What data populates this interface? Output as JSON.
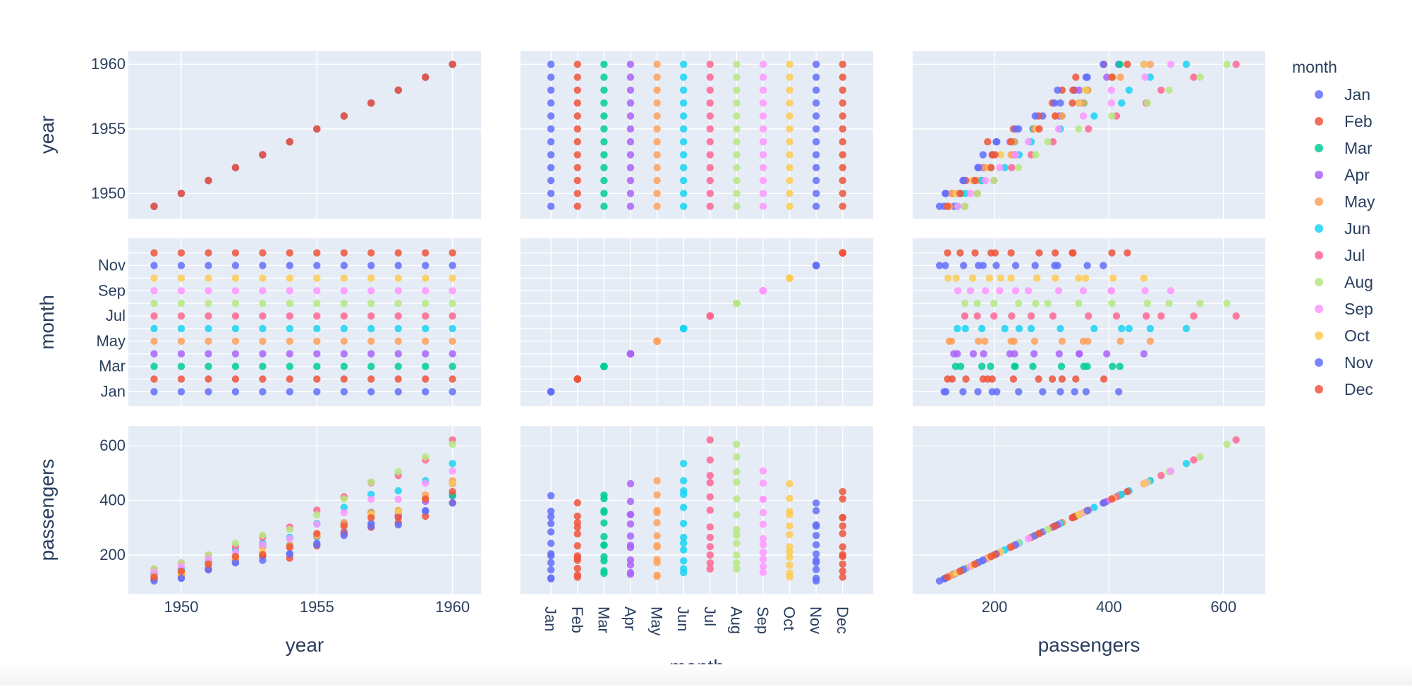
{
  "chart_data": {
    "type": "scatter-matrix",
    "dimensions": [
      "year",
      "month",
      "passengers"
    ],
    "dimension_labels": {
      "year": "year",
      "month": "month",
      "passengers": "passengers"
    },
    "axes": {
      "year": {
        "range": [
          1948.05,
          1961.05
        ],
        "ticks": [
          1950,
          1955,
          1960
        ],
        "tick_labels": [
          "1950",
          "1955",
          "1960"
        ],
        "categorical": false
      },
      "month": {
        "range": [
          -1.15,
          12.15
        ],
        "categories": [
          "Jan",
          "Feb",
          "Mar",
          "Apr",
          "May",
          "Jun",
          "Jul",
          "Aug",
          "Sep",
          "Oct",
          "Nov",
          "Dec"
        ],
        "y_tick_labels": [
          "Jan",
          "Mar",
          "May",
          "Jul",
          "Sep",
          "Nov"
        ],
        "categorical": true
      },
      "passengers": {
        "range": [
          57,
          673
        ],
        "ticks": [
          200,
          400,
          600
        ],
        "tick_labels": [
          "200",
          "400",
          "600"
        ],
        "categorical": false
      }
    },
    "legend": {
      "title": "month",
      "position": "right"
    },
    "series": [
      {
        "name": "Jan",
        "color": "#636efa",
        "year": [
          1949,
          1950,
          1951,
          1952,
          1953,
          1954,
          1955,
          1956,
          1957,
          1958,
          1959,
          1960
        ],
        "passengers": [
          112,
          115,
          145,
          171,
          196,
          204,
          242,
          284,
          315,
          340,
          360,
          417
        ]
      },
      {
        "name": "Feb",
        "color": "#EF553B",
        "year": [
          1949,
          1950,
          1951,
          1952,
          1953,
          1954,
          1955,
          1956,
          1957,
          1958,
          1959,
          1960
        ],
        "passengers": [
          118,
          126,
          150,
          180,
          196,
          188,
          233,
          277,
          301,
          318,
          342,
          391
        ]
      },
      {
        "name": "Mar",
        "color": "#00cc96",
        "year": [
          1949,
          1950,
          1951,
          1952,
          1953,
          1954,
          1955,
          1956,
          1957,
          1958,
          1959,
          1960
        ],
        "passengers": [
          132,
          141,
          178,
          193,
          236,
          235,
          267,
          317,
          356,
          362,
          406,
          419
        ]
      },
      {
        "name": "Apr",
        "color": "#ab63fa",
        "year": [
          1949,
          1950,
          1951,
          1952,
          1953,
          1954,
          1955,
          1956,
          1957,
          1958,
          1959,
          1960
        ],
        "passengers": [
          129,
          135,
          163,
          181,
          235,
          227,
          269,
          313,
          348,
          348,
          396,
          461
        ]
      },
      {
        "name": "May",
        "color": "#FFA15A",
        "year": [
          1949,
          1950,
          1951,
          1952,
          1953,
          1954,
          1955,
          1956,
          1957,
          1958,
          1959,
          1960
        ],
        "passengers": [
          121,
          125,
          172,
          183,
          229,
          234,
          270,
          318,
          355,
          363,
          420,
          472
        ]
      },
      {
        "name": "Jun",
        "color": "#19d3f3",
        "year": [
          1949,
          1950,
          1951,
          1952,
          1953,
          1954,
          1955,
          1956,
          1957,
          1958,
          1959,
          1960
        ],
        "passengers": [
          135,
          149,
          178,
          218,
          243,
          264,
          315,
          374,
          422,
          435,
          472,
          535
        ]
      },
      {
        "name": "Jul",
        "color": "#FF6692",
        "year": [
          1949,
          1950,
          1951,
          1952,
          1953,
          1954,
          1955,
          1956,
          1957,
          1958,
          1959,
          1960
        ],
        "passengers": [
          148,
          170,
          199,
          230,
          264,
          302,
          364,
          413,
          465,
          491,
          548,
          622
        ]
      },
      {
        "name": "Aug",
        "color": "#B6E880",
        "year": [
          1949,
          1950,
          1951,
          1952,
          1953,
          1954,
          1955,
          1956,
          1957,
          1958,
          1959,
          1960
        ],
        "passengers": [
          148,
          170,
          199,
          242,
          272,
          293,
          347,
          405,
          467,
          505,
          559,
          606
        ]
      },
      {
        "name": "Sep",
        "color": "#FF97FF",
        "year": [
          1949,
          1950,
          1951,
          1952,
          1953,
          1954,
          1955,
          1956,
          1957,
          1958,
          1959,
          1960
        ],
        "passengers": [
          136,
          158,
          184,
          209,
          237,
          259,
          312,
          355,
          404,
          404,
          463,
          508
        ]
      },
      {
        "name": "Oct",
        "color": "#FECB52",
        "year": [
          1949,
          1950,
          1951,
          1952,
          1953,
          1954,
          1955,
          1956,
          1957,
          1958,
          1959,
          1960
        ],
        "passengers": [
          119,
          133,
          162,
          191,
          211,
          229,
          274,
          306,
          347,
          359,
          407,
          461
        ]
      },
      {
        "name": "Nov",
        "color": "#636efa",
        "year": [
          1949,
          1950,
          1951,
          1952,
          1953,
          1954,
          1955,
          1956,
          1957,
          1958,
          1959,
          1960
        ],
        "passengers": [
          104,
          114,
          146,
          172,
          180,
          203,
          237,
          271,
          305,
          310,
          362,
          390
        ]
      },
      {
        "name": "Dec",
        "color": "#EF553B",
        "year": [
          1949,
          1950,
          1951,
          1952,
          1953,
          1954,
          1955,
          1956,
          1957,
          1958,
          1959,
          1960
        ],
        "passengers": [
          118,
          140,
          166,
          194,
          201,
          229,
          278,
          306,
          336,
          337,
          405,
          432
        ]
      }
    ]
  }
}
